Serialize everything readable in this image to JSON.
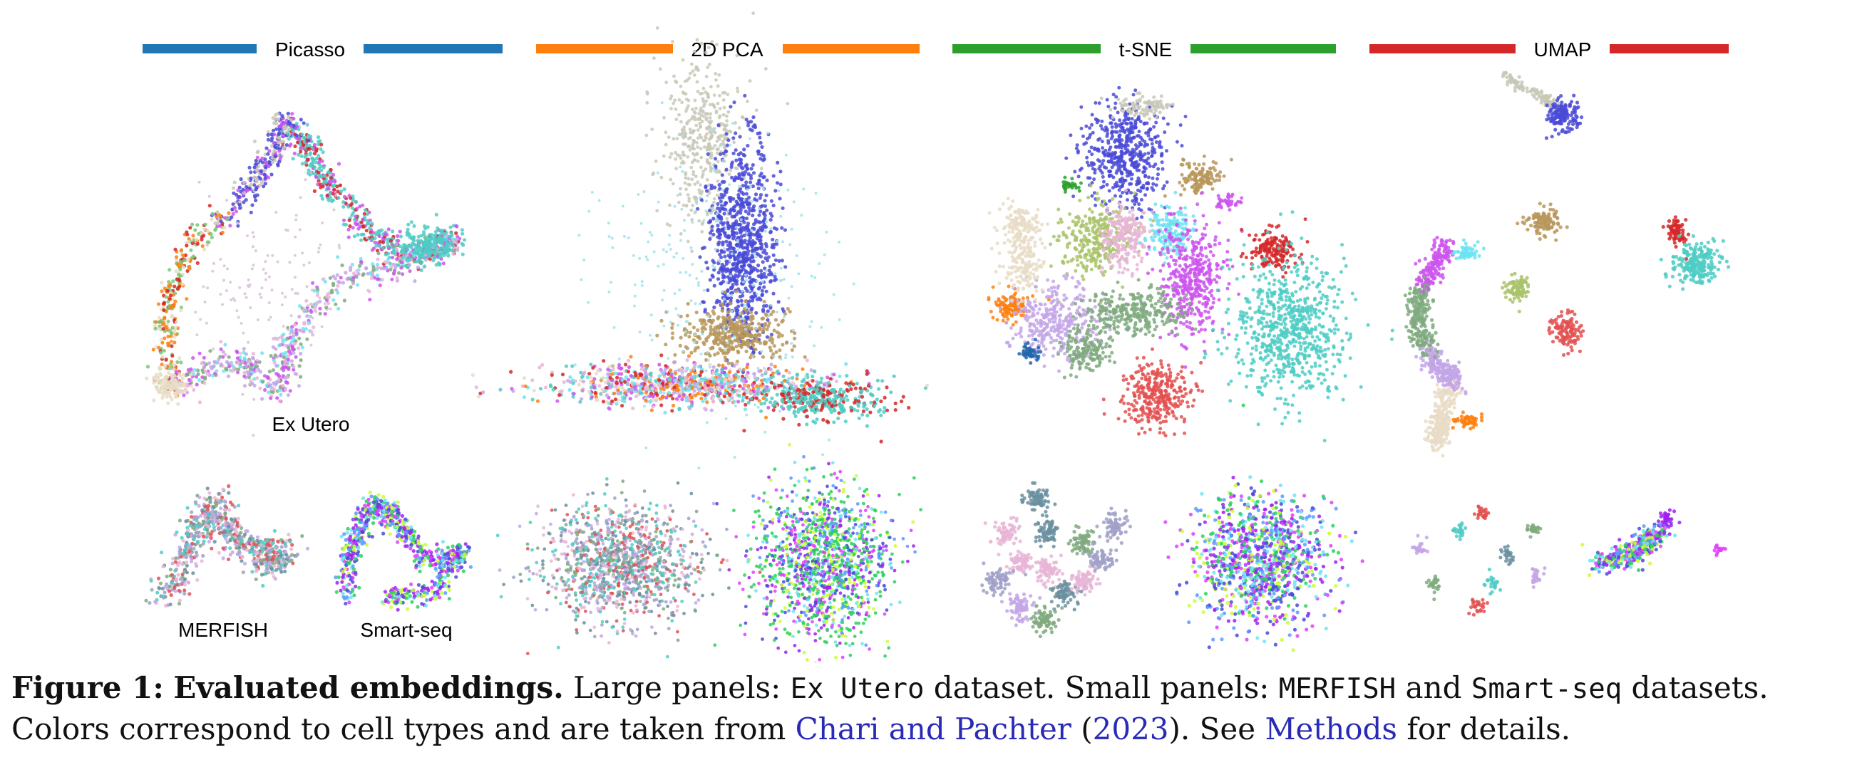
{
  "methods": [
    {
      "label": "Picasso",
      "color": "#1f77b4"
    },
    {
      "label": "2D PCA",
      "color": "#ff7f0e"
    },
    {
      "label": "t-SNE",
      "color": "#2ca02c"
    },
    {
      "label": "UMAP",
      "color": "#d62728"
    }
  ],
  "panel_labels": {
    "ex_utero": "Ex Utero",
    "merfish": "MERFISH",
    "smart_seq": "Smart-seq"
  },
  "cell_type_colors": [
    "#4a4ad8",
    "#c8c8b8",
    "#b8975a",
    "#4ecdc4",
    "#d62728",
    "#cc55ee",
    "#6fe3f2",
    "#e8dcc6",
    "#a9c36a",
    "#c3a6e8",
    "#ff7f0e",
    "#7faa7f",
    "#e8b5d6",
    "#2166ac",
    "#e35050",
    "#78c878"
  ],
  "caption": {
    "figure_label": "Figure 1:",
    "title": "Evaluated embeddings.",
    "text_1": " Large panels: ",
    "code_1": "Ex Utero",
    "text_2": " dataset. Small panels: ",
    "code_2": "MERFISH",
    "text_3": " and ",
    "code_3": "Smart-seq",
    "text_4": " datasets. Colors correspond to cell types and are taken from ",
    "cite_authors": "Chari and Pachter",
    "text_5": " (",
    "cite_year": "2023",
    "text_6": "). See ",
    "cite_methods": "Methods",
    "text_7": " for details."
  }
}
